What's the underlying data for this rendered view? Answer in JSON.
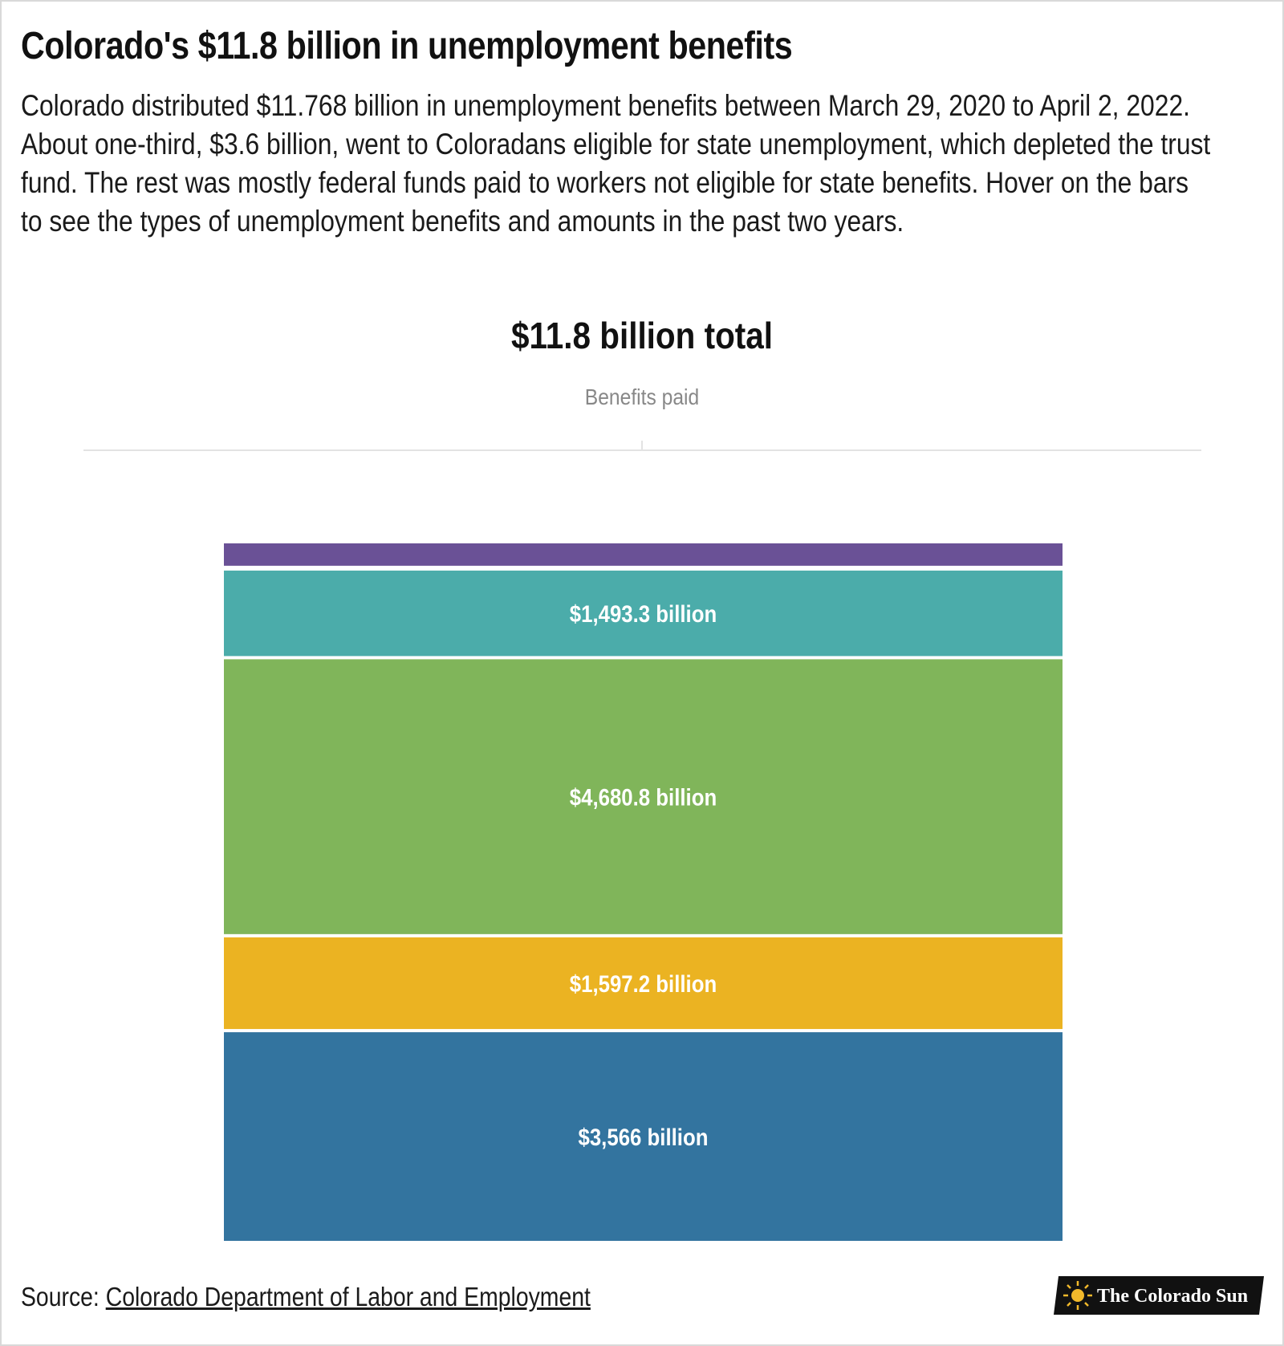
{
  "headline": "Colorado's $11.8 billion in unemployment benefits",
  "description": "Colorado distributed $11.768 billion in unemployment benefits between March 29, 2020 to April 2, 2022. About one-third, $3.6 billion, went to Coloradans eligible for state unemployment, which depleted the trust fund. The rest was mostly federal funds paid to workers not eligible for state benefits. Hover on the bars to see the types of unemployment benefits and amounts in the past two years.",
  "source": {
    "prefix": "Source: ",
    "link_text": "Colorado Department of Labor and Employment"
  },
  "logo": {
    "text": "The Colorado Sun",
    "icon": "sun-icon"
  },
  "chart_data": {
    "type": "bar",
    "stacked": true,
    "title": "$11.8 billion total",
    "xlabel": "Benefits paid",
    "categories": [
      "Benefits paid"
    ],
    "ylim": [
      0,
      11768
    ],
    "grid": false,
    "legend": "none",
    "series": [
      {
        "values": [
          3566
        ],
        "label": "$3,566 billion",
        "color": "#33749f"
      },
      {
        "values": [
          1597.2
        ],
        "label": "$1,597.2 billion",
        "color": "#ebb322"
      },
      {
        "values": [
          4680.8
        ],
        "label": "$4,680.8 billion",
        "color": "#80b55a"
      },
      {
        "values": [
          1493.3
        ],
        "label": "$1,493.3 billion",
        "color": "#4bacaa"
      },
      {
        "values": [
          430.7
        ],
        "label": "",
        "color": "#6a5196"
      }
    ]
  }
}
